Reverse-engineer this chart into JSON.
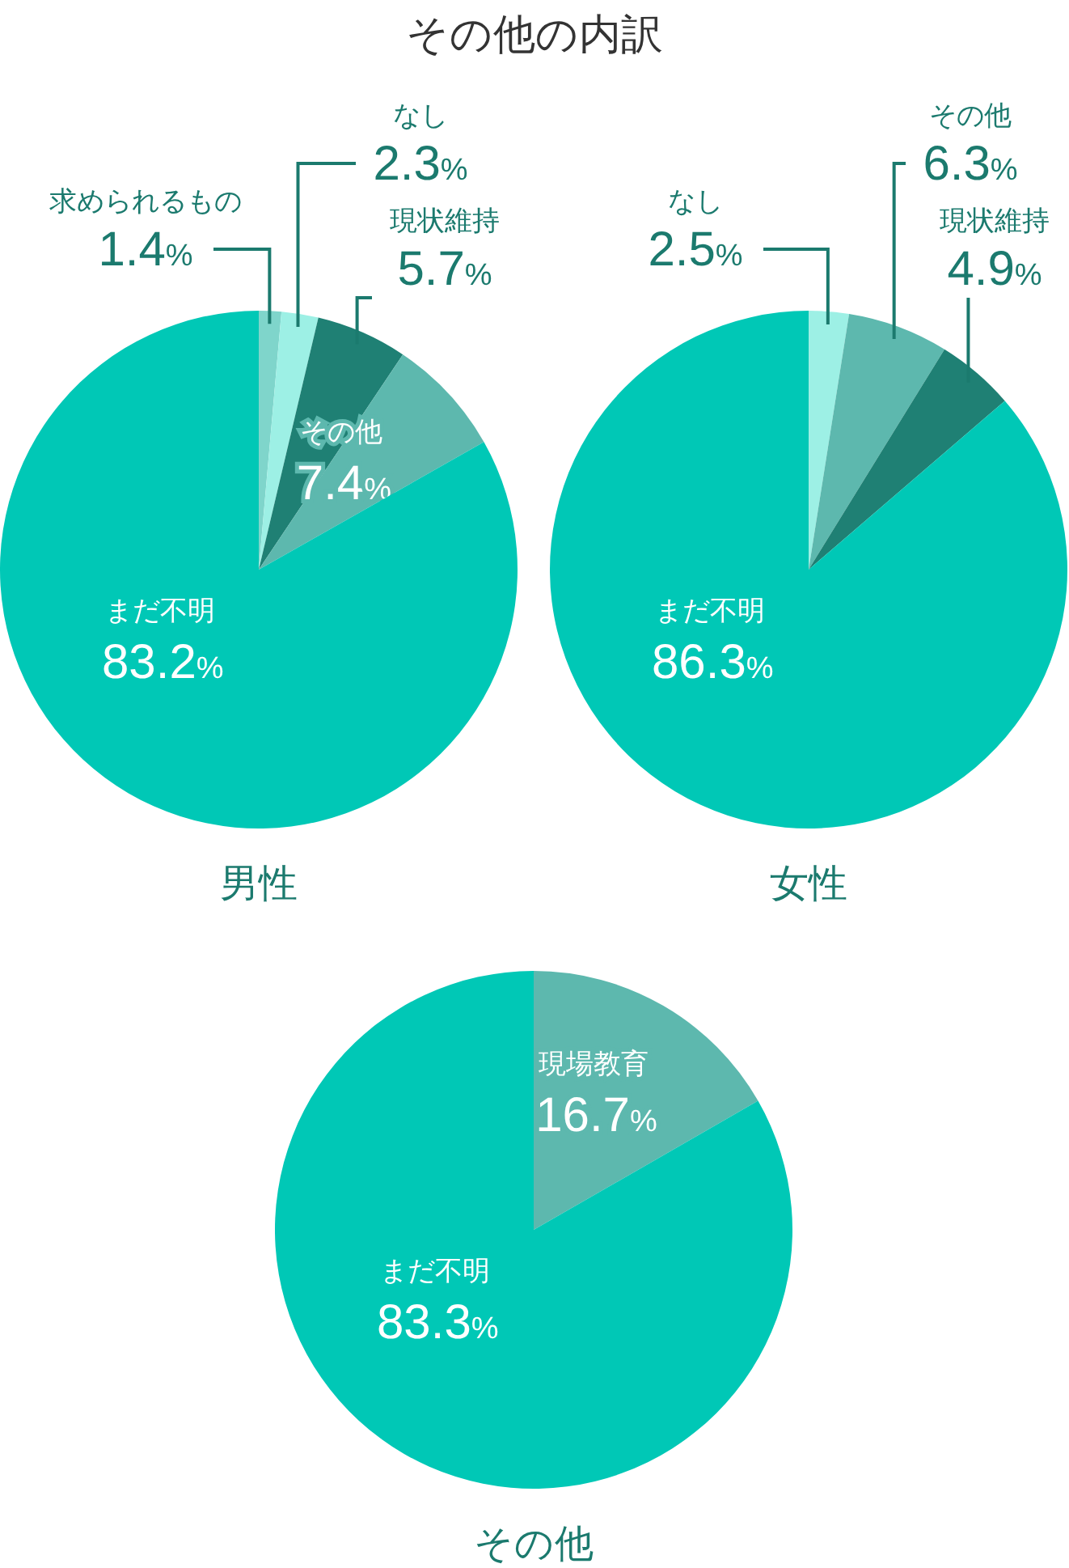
{
  "chart_data": [
    {
      "type": "pie",
      "title": "その他の内訳",
      "xlabel": "男性",
      "categories": [
        "求められるもの",
        "なし",
        "現状維持",
        "その他",
        "まだ不明"
      ],
      "values": [
        1.4,
        2.3,
        5.7,
        7.4,
        83.2
      ],
      "colors": [
        "#7fd5cb",
        "#9df0e5",
        "#1f8074",
        "#5db8ae",
        "#00c8b6"
      ],
      "value_labels": [
        "1.4%",
        "2.3%",
        "5.7%",
        "7.4%",
        "83.2%"
      ]
    },
    {
      "type": "pie",
      "xlabel": "女性",
      "categories": [
        "なし",
        "その他",
        "現状維持",
        "まだ不明"
      ],
      "values": [
        2.5,
        6.3,
        4.9,
        86.3
      ],
      "colors": [
        "#9df0e5",
        "#5db8ae",
        "#1f8074",
        "#00c8b6"
      ],
      "value_labels": [
        "2.5%",
        "6.3%",
        "4.9%",
        "86.3%"
      ]
    },
    {
      "type": "pie",
      "xlabel": "その他",
      "categories": [
        "現場教育",
        "まだ不明"
      ],
      "values": [
        16.7,
        83.3
      ],
      "colors": [
        "#5db8ae",
        "#00c8b6"
      ],
      "value_labels": [
        "16.7%",
        "83.3%"
      ]
    }
  ]
}
